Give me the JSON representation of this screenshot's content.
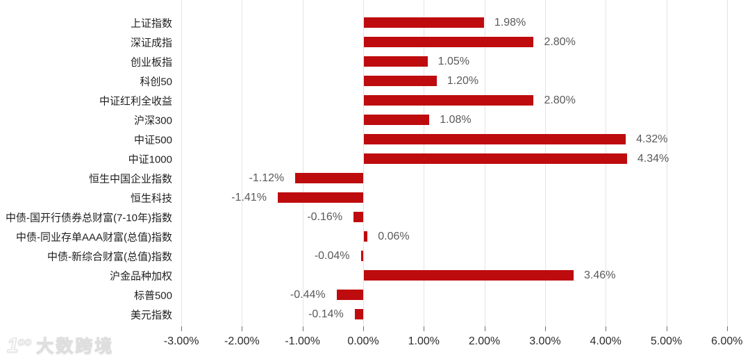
{
  "chart_data": {
    "type": "bar",
    "orientation": "horizontal",
    "title": "",
    "xlabel": "",
    "ylabel": "",
    "grid": true,
    "legend": false,
    "bar_color": "#be0b0e",
    "categories": [
      "上证指数",
      "深证成指",
      "创业板指",
      "科创50",
      "中证红利全收益",
      "沪深300",
      "中证500",
      "中证1000",
      "恒生中国企业指数",
      "恒生科技",
      "中债-国开行债券总财富(7-10年)指数",
      "中债-同业存单AAA财富(总值)指数",
      "中债-新综合财富(总值)指数",
      "沪金品种加权",
      "标普500",
      "美元指数"
    ],
    "values": [
      1.98,
      2.8,
      1.05,
      1.2,
      2.8,
      1.08,
      4.32,
      4.34,
      -1.12,
      -1.41,
      -0.16,
      0.06,
      -0.04,
      3.46,
      -0.44,
      -0.14
    ],
    "value_labels": [
      "1.98%",
      "2.80%",
      "1.05%",
      "1.20%",
      "2.80%",
      "1.08%",
      "4.32%",
      "4.34%",
      "-1.12%",
      "-1.41%",
      "-0.16%",
      "0.06%",
      "-0.04%",
      "3.46%",
      "-0.44%",
      "-0.14%"
    ],
    "x_axis": {
      "range_pct": [
        -3,
        6
      ],
      "ticks": [
        -3,
        -2,
        -1,
        0,
        1,
        2,
        3,
        4,
        5,
        6
      ],
      "tick_labels": [
        "-3.00%",
        "-2.00%",
        "-1.00%",
        "0.00%",
        "1.00%",
        "2.00%",
        "3.00%",
        "4.00%",
        "5.00%",
        "6.00%"
      ]
    }
  },
  "watermark": {
    "logo_1": "1",
    "logo_oo": "oo",
    "text": "大数跨境"
  },
  "colors": {
    "bar": "#be0b0e",
    "gridline": "#e3e3e3",
    "axis_tick": "#707070",
    "axis_label": "#2b2b2b",
    "category_label": "#1f1f1f",
    "value_label": "#595959"
  }
}
